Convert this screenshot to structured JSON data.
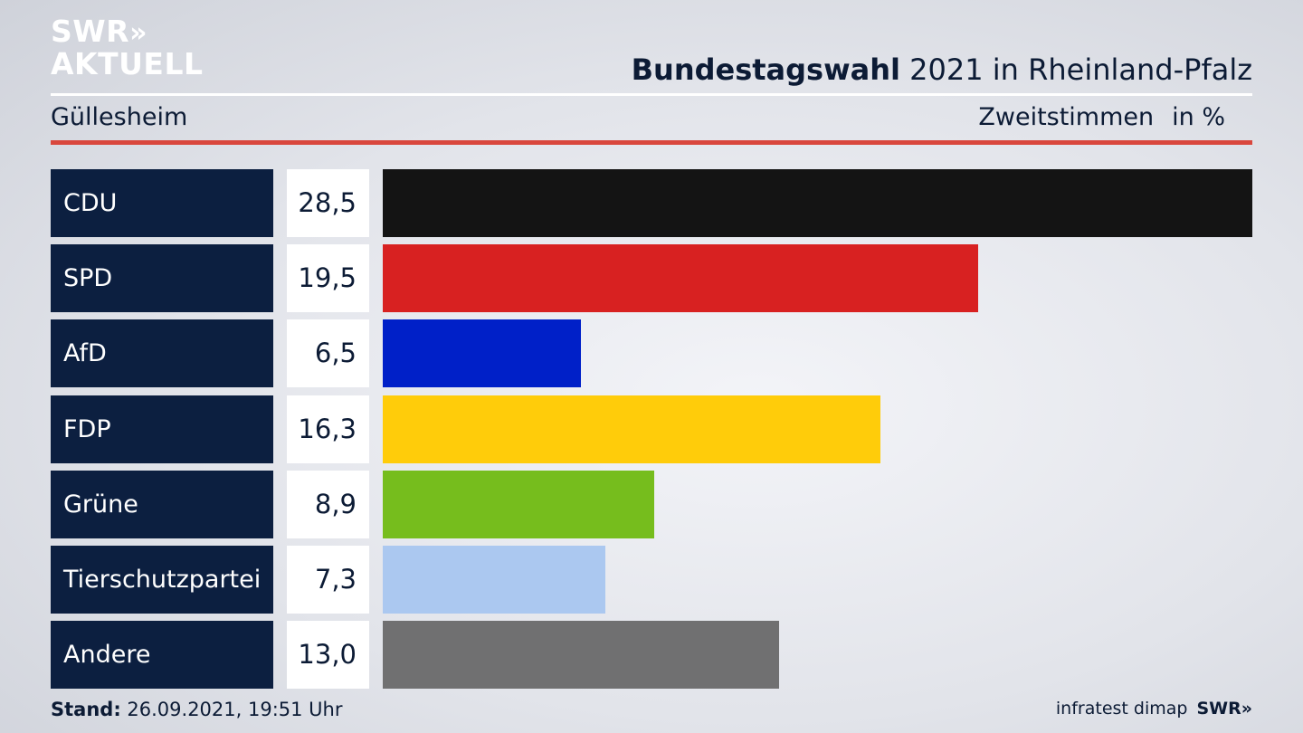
{
  "brand": {
    "logo_line1": "SWR",
    "logo_arrows": "»",
    "logo_line2": "AKTUELL"
  },
  "header": {
    "title_bold": "Bundestagswahl",
    "title_rest": " 2021 in Rheinland-Pfalz",
    "region": "Güllesheim",
    "measure": "Zweitstimmen",
    "unit": "in %"
  },
  "chart_data": {
    "type": "bar",
    "orientation": "horizontal",
    "xlim": [
      0,
      28.5
    ],
    "categories": [
      "CDU",
      "SPD",
      "AfD",
      "FDP",
      "Grüne",
      "Tierschutzpartei",
      "Andere"
    ],
    "values": [
      28.5,
      19.5,
      6.5,
      16.3,
      8.9,
      7.3,
      13.0
    ],
    "value_labels": [
      "28,5",
      "19,5",
      "6,5",
      "16,3",
      "8,9",
      "7,3",
      "13,0"
    ],
    "colors": [
      "#141414",
      "#d82121",
      "#0020c8",
      "#ffcc0a",
      "#76bd1d",
      "#abc8f0",
      "#707071"
    ]
  },
  "footer": {
    "stand_label": "Stand:",
    "stand_value": " 26.09.2021, 19:51 Uhr",
    "source": "infratest dimap",
    "source_brand": "SWR»"
  }
}
